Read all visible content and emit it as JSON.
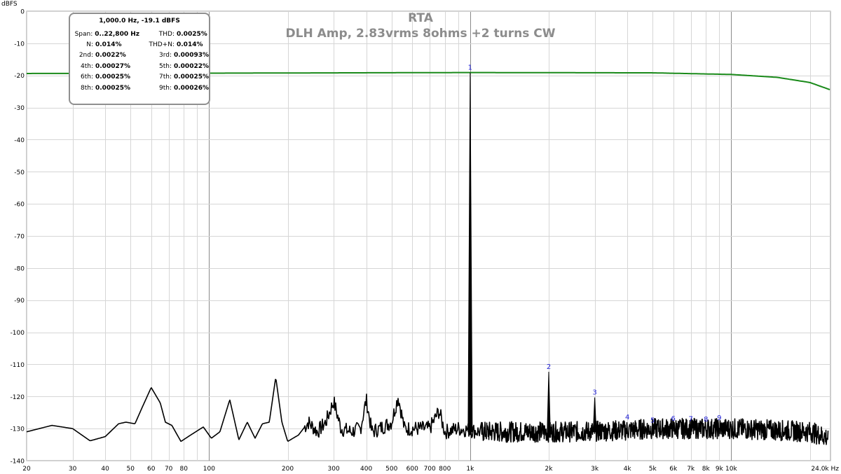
{
  "chart_data": {
    "type": "line",
    "title": "RTA",
    "subtitle": "DLH Amp, 2.83vrms 8ohms +2 turns CW",
    "ylabel": "dBFS",
    "x_unit": "Hz",
    "x_scale": "log",
    "xlim": [
      20,
      24000
    ],
    "ylim": [
      -140,
      0
    ],
    "grid": true,
    "y_ticks": [
      0,
      -10,
      -20,
      -30,
      -40,
      -50,
      -60,
      -70,
      -80,
      -90,
      -100,
      -110,
      -120,
      -130,
      -140
    ],
    "x_ticks": [
      {
        "value": 20,
        "label": "20"
      },
      {
        "value": 30,
        "label": "30"
      },
      {
        "value": 40,
        "label": "40"
      },
      {
        "value": 50,
        "label": "50"
      },
      {
        "value": 60,
        "label": "60"
      },
      {
        "value": 70,
        "label": "70"
      },
      {
        "value": 80,
        "label": "80"
      },
      {
        "value": 100,
        "label": "100"
      },
      {
        "value": 200,
        "label": "200"
      },
      {
        "value": 300,
        "label": "300"
      },
      {
        "value": 400,
        "label": "400"
      },
      {
        "value": 500,
        "label": "500"
      },
      {
        "value": 600,
        "label": "600"
      },
      {
        "value": 700,
        "label": "700"
      },
      {
        "value": 800,
        "label": "800"
      },
      {
        "value": 1000,
        "label": "1k"
      },
      {
        "value": 2000,
        "label": "2k"
      },
      {
        "value": 3000,
        "label": "3k"
      },
      {
        "value": 4000,
        "label": "4k"
      },
      {
        "value": 5000,
        "label": "5k"
      },
      {
        "value": 6000,
        "label": "6k"
      },
      {
        "value": 7000,
        "label": "7k"
      },
      {
        "value": 8000,
        "label": "8k"
      },
      {
        "value": 9000,
        "label": "9k"
      },
      {
        "value": 10000,
        "label": "10k"
      },
      {
        "value": 24000,
        "label": "24.0k Hz"
      }
    ],
    "major_gridlines_x": [
      100,
      1000,
      10000
    ],
    "series": [
      {
        "color": "#1a8a1a",
        "points": [
          [
            20,
            -19.4
          ],
          [
            100,
            -19.3
          ],
          [
            1000,
            -19.1
          ],
          [
            5000,
            -19.2
          ],
          [
            10000,
            -19.7
          ],
          [
            15000,
            -20.6
          ],
          [
            20000,
            -22.2
          ],
          [
            24000,
            -24.5
          ]
        ]
      },
      {
        "color": "#000000",
        "points": [
          [
            20,
            -131
          ],
          [
            25,
            -129
          ],
          [
            30,
            -130
          ],
          [
            35,
            -133.8
          ],
          [
            40,
            -132.5
          ],
          [
            45,
            -128.5
          ],
          [
            48,
            -128
          ],
          [
            52,
            -128.5
          ],
          [
            55,
            -124
          ],
          [
            60,
            -117.2
          ],
          [
            65,
            -122
          ],
          [
            68,
            -128
          ],
          [
            72,
            -129
          ],
          [
            78,
            -134
          ],
          [
            85,
            -132
          ],
          [
            95,
            -129.5
          ],
          [
            102,
            -133
          ],
          [
            110,
            -131
          ],
          [
            120,
            -121
          ],
          [
            130,
            -133.5
          ],
          [
            140,
            -128
          ],
          [
            150,
            -133
          ],
          [
            160,
            -128.5
          ],
          [
            170,
            -128
          ],
          [
            180,
            -114
          ],
          [
            190,
            -128
          ],
          [
            200,
            -134
          ],
          [
            220,
            -132
          ],
          [
            240,
            -128
          ],
          [
            260,
            -131
          ],
          [
            280,
            -128
          ],
          [
            300,
            -121.5
          ],
          [
            320,
            -130
          ],
          [
            350,
            -131
          ],
          [
            380,
            -130
          ],
          [
            400,
            -121
          ],
          [
            420,
            -131
          ],
          [
            450,
            -130
          ],
          [
            500,
            -128
          ],
          [
            530,
            -120
          ],
          [
            560,
            -130
          ],
          [
            600,
            -130
          ],
          [
            700,
            -130
          ],
          [
            760,
            -124.5
          ],
          [
            800,
            -131
          ],
          [
            900,
            -130
          ],
          [
            1000,
            -19.1
          ],
          [
            1100,
            -131
          ],
          [
            1500,
            -131
          ],
          [
            2000,
            -112.3
          ],
          [
            2500,
            -131
          ],
          [
            3000,
            -120.3
          ],
          [
            4000,
            -130.5
          ],
          [
            5000,
            -130
          ],
          [
            7000,
            -130
          ],
          [
            10000,
            -130
          ],
          [
            15000,
            -130.5
          ],
          [
            20000,
            -131
          ],
          [
            24000,
            -133
          ]
        ]
      }
    ],
    "harmonic_markers": [
      {
        "label": "1",
        "freq": 1000,
        "db": -19.1
      },
      {
        "label": "2",
        "freq": 2000,
        "db": -112.3
      },
      {
        "label": "3",
        "freq": 3000,
        "db": -120.3
      },
      {
        "label": "4",
        "freq": 4000,
        "db": -128
      },
      {
        "label": "5",
        "freq": 5000,
        "db": -129
      },
      {
        "label": "6",
        "freq": 6000,
        "db": -128.4
      },
      {
        "label": "7",
        "freq": 7000,
        "db": -128.5
      },
      {
        "label": "8",
        "freq": 8000,
        "db": -128.7
      },
      {
        "label": "9",
        "freq": 9000,
        "db": -128.2
      }
    ]
  },
  "info_box": {
    "header": "1,000.0 Hz, -19.1 dBFS",
    "rows": [
      [
        {
          "label": "Span:",
          "value": "0..22,800 Hz"
        },
        {
          "label": "THD:",
          "value": "0.0025%"
        }
      ],
      [
        {
          "label": "N:",
          "value": "0.014%"
        },
        {
          "label": "THD+N:",
          "value": "0.014%"
        }
      ],
      [
        {
          "label": "2nd:",
          "value": "0.0022%"
        },
        {
          "label": "3rd:",
          "value": "0.00093%"
        }
      ],
      [
        {
          "label": "4th:",
          "value": "0.00027%"
        },
        {
          "label": "5th:",
          "value": "0.00022%"
        }
      ],
      [
        {
          "label": "6th:",
          "value": "0.00025%"
        },
        {
          "label": "7th:",
          "value": "0.00025%"
        }
      ],
      [
        {
          "label": "8th:",
          "value": "0.00025%"
        },
        {
          "label": "9th:",
          "value": "0.00026%"
        }
      ]
    ]
  }
}
